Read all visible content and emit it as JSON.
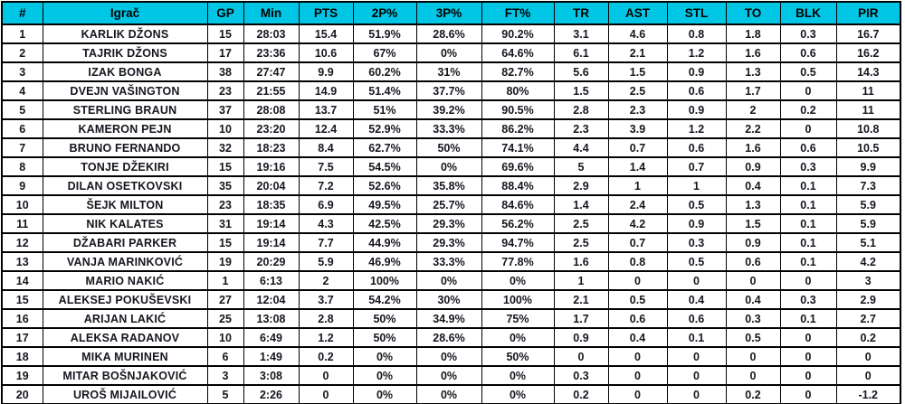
{
  "colors": {
    "header_bg": "#00c6e6",
    "header_text": "#000000",
    "cell_text": "#16161f",
    "border": "#000000",
    "row_bg": "#ffffff"
  },
  "chart_data": {
    "type": "table",
    "columns": [
      "#",
      "Igrač",
      "GP",
      "Min",
      "PTS",
      "2P%",
      "3P%",
      "FT%",
      "TR",
      "AST",
      "STL",
      "TO",
      "BLK",
      "PIR"
    ],
    "rows": [
      [
        "1",
        "KARLIK DŽONS",
        "15",
        "28:03",
        "15.4",
        "51.9%",
        "28.6%",
        "90.2%",
        "3.1",
        "4.6",
        "0.8",
        "1.8",
        "0.3",
        "16.7"
      ],
      [
        "2",
        "TAJRIK DŽONS",
        "17",
        "23:36",
        "10.6",
        "67%",
        "0%",
        "64.6%",
        "6.1",
        "2.1",
        "1.2",
        "1.6",
        "0.6",
        "16.2"
      ],
      [
        "3",
        "IZAK BONGA",
        "38",
        "27:47",
        "9.9",
        "60.2%",
        "31%",
        "82.7%",
        "5.6",
        "1.5",
        "0.9",
        "1.3",
        "0.5",
        "14.3"
      ],
      [
        "4",
        "DVEJN VAŠINGTON",
        "23",
        "21:55",
        "14.9",
        "51.4%",
        "37.7%",
        "80%",
        "1.5",
        "2.5",
        "0.6",
        "1.7",
        "0",
        "11"
      ],
      [
        "5",
        "STERLING BRAUN",
        "37",
        "28:08",
        "13.7",
        "51%",
        "39.2%",
        "90.5%",
        "2.8",
        "2.3",
        "0.9",
        "2",
        "0.2",
        "11"
      ],
      [
        "6",
        "KAMERON PEJN",
        "10",
        "23:20",
        "12.4",
        "52.9%",
        "33.3%",
        "86.2%",
        "2.3",
        "3.9",
        "1.2",
        "2.2",
        "0",
        "10.8"
      ],
      [
        "7",
        "BRUNO FERNANDO",
        "32",
        "18:23",
        "8.4",
        "62.7%",
        "50%",
        "74.1%",
        "4.4",
        "0.7",
        "0.6",
        "1.6",
        "0.6",
        "10.5"
      ],
      [
        "8",
        "TONJE DŽEKIRI",
        "15",
        "19:16",
        "7.5",
        "54.5%",
        "0%",
        "69.6%",
        "5",
        "1.4",
        "0.7",
        "0.9",
        "0.3",
        "9.9"
      ],
      [
        "9",
        "DILAN OSETKOVSKI",
        "35",
        "20:04",
        "7.2",
        "52.6%",
        "35.8%",
        "88.4%",
        "2.9",
        "1",
        "1",
        "0.4",
        "0.1",
        "7.3"
      ],
      [
        "10",
        "ŠEJK MILTON",
        "23",
        "18:35",
        "6.9",
        "49.5%",
        "25.7%",
        "84.6%",
        "1.4",
        "2.4",
        "0.5",
        "1.3",
        "0.1",
        "5.9"
      ],
      [
        "11",
        "NIK KALATES",
        "31",
        "19:14",
        "4.3",
        "42.5%",
        "29.3%",
        "56.2%",
        "2.5",
        "4.2",
        "0.9",
        "1.5",
        "0.1",
        "5.9"
      ],
      [
        "12",
        "DŽABARI PARKER",
        "15",
        "19:14",
        "7.7",
        "44.9%",
        "29.3%",
        "94.7%",
        "2.5",
        "0.7",
        "0.3",
        "0.9",
        "0.1",
        "5.1"
      ],
      [
        "13",
        "VANJA MARINKOVIĆ",
        "19",
        "20:29",
        "5.9",
        "46.9%",
        "33.3%",
        "77.8%",
        "1.6",
        "0.8",
        "0.5",
        "0.6",
        "0.1",
        "4.2"
      ],
      [
        "14",
        "MARIO NAKIĆ",
        "1",
        "6:13",
        "2",
        "100%",
        "0%",
        "0%",
        "1",
        "0",
        "0",
        "0",
        "0",
        "3"
      ],
      [
        "15",
        "ALEKSEJ POKUŠEVSKI",
        "27",
        "12:04",
        "3.7",
        "54.2%",
        "30%",
        "100%",
        "2.1",
        "0.5",
        "0.4",
        "0.4",
        "0.3",
        "2.9"
      ],
      [
        "16",
        "ARIJAN LAKIĆ",
        "25",
        "13:08",
        "2.8",
        "50%",
        "34.9%",
        "75%",
        "1.7",
        "0.6",
        "0.6",
        "0.3",
        "0.1",
        "2.7"
      ],
      [
        "17",
        "ALEKSA RADANOV",
        "10",
        "6:49",
        "1.2",
        "50%",
        "28.6%",
        "0%",
        "0.9",
        "0.4",
        "0.1",
        "0.5",
        "0",
        "0.2"
      ],
      [
        "18",
        "MIKA MURINEN",
        "6",
        "1:49",
        "0.2",
        "0%",
        "0%",
        "50%",
        "0",
        "0",
        "0",
        "0",
        "0",
        "0"
      ],
      [
        "19",
        "MITAR BOŠNJAKOVIĆ",
        "3",
        "3:08",
        "0",
        "0%",
        "0%",
        "0%",
        "0.3",
        "0",
        "0",
        "0",
        "0",
        "0"
      ],
      [
        "20",
        "UROŠ MIJAILOVIĆ",
        "5",
        "2:26",
        "0",
        "0%",
        "0%",
        "0%",
        "0.2",
        "0",
        "0",
        "0.2",
        "0",
        "-1.2"
      ]
    ]
  }
}
